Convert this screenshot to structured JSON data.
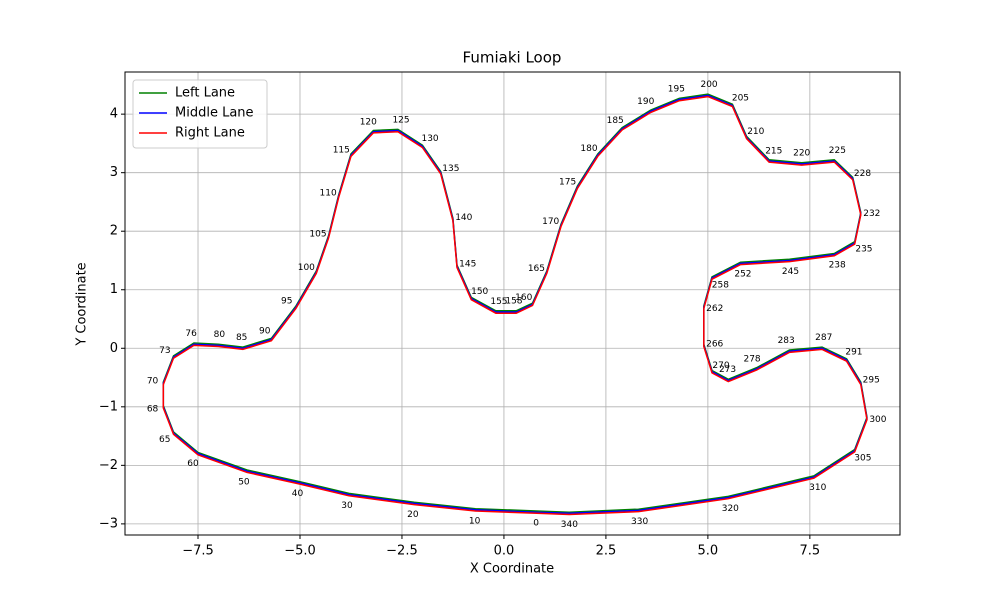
{
  "chart_data": {
    "type": "line",
    "title": "Fumiaki Loop",
    "x_label": "X Coordinate",
    "y_label": "Y Coordinate",
    "xlim": [
      -9.29,
      9.71
    ],
    "ylim": [
      -3.19,
      4.72
    ],
    "xticks": [
      {
        "value": -7.5,
        "label": "−7.5"
      },
      {
        "value": -5,
        "label": "−5.0"
      },
      {
        "value": -2.5,
        "label": "−2.5"
      },
      {
        "value": 0,
        "label": "0.0"
      },
      {
        "value": 2.5,
        "label": "2.5"
      },
      {
        "value": 5,
        "label": "5.0"
      },
      {
        "value": 7.5,
        "label": "7.5"
      }
    ],
    "yticks": [
      {
        "value": -3,
        "label": "−3"
      },
      {
        "value": -2,
        "label": "−2"
      },
      {
        "value": -1,
        "label": "−1"
      },
      0,
      1,
      2,
      3,
      4
    ],
    "grid": true,
    "legend": "upper left",
    "x": [
      0.8,
      -0.7,
      -2.2,
      -3.8,
      -5.0,
      -6.3,
      -7.5,
      -8.1,
      -8.35,
      -8.35,
      -8.1,
      -7.6,
      -7.0,
      -6.4,
      -5.7,
      -5.1,
      -4.6,
      -4.3,
      -4.05,
      -3.75,
      -3.2,
      -2.6,
      -2.0,
      -1.55,
      -1.25,
      -1.15,
      -0.8,
      -0.2,
      0.3,
      0.7,
      1.05,
      1.4,
      1.8,
      2.3,
      2.9,
      3.6,
      4.3,
      5.0,
      5.6,
      5.95,
      6.5,
      7.3,
      8.1,
      8.55,
      8.75,
      8.6,
      8.1,
      7.0,
      5.8,
      5.1,
      4.9,
      4.9,
      5.1,
      5.5,
      6.2,
      7.0,
      7.8,
      8.4,
      8.75,
      8.9,
      8.6,
      7.6,
      5.5,
      3.3,
      1.6
    ],
    "point_labels": [
      0,
      10,
      20,
      30,
      40,
      50,
      60,
      65,
      68,
      70,
      73,
      76,
      80,
      85,
      90,
      95,
      100,
      105,
      110,
      115,
      120,
      125,
      130,
      135,
      140,
      145,
      150,
      155,
      158,
      160,
      165,
      170,
      175,
      180,
      185,
      190,
      195,
      200,
      205,
      210,
      215,
      220,
      225,
      228,
      232,
      235,
      238,
      245,
      252,
      258,
      262,
      266,
      270,
      273,
      278,
      283,
      287,
      291,
      295,
      300,
      305,
      310,
      320,
      330,
      340
    ],
    "series": [
      {
        "name": "Left Lane",
        "color": "#008000",
        "values": [
          -2.78,
          -2.74,
          -2.63,
          -2.48,
          -2.28,
          -2.08,
          -1.78,
          -1.43,
          -0.98,
          -0.58,
          -0.13,
          0.09,
          0.07,
          0.02,
          0.17,
          0.72,
          1.32,
          1.92,
          2.62,
          3.32,
          3.72,
          3.74,
          3.47,
          3.02,
          2.22,
          1.42,
          0.87,
          0.64,
          0.64,
          0.77,
          1.32,
          2.12,
          2.77,
          3.32,
          3.77,
          4.07,
          4.27,
          4.34,
          4.17,
          3.62,
          3.22,
          3.17,
          3.22,
          2.92,
          2.32,
          1.82,
          1.62,
          1.52,
          1.47,
          1.22,
          0.72,
          0.07,
          -0.38,
          -0.53,
          -0.33,
          -0.03,
          0.02,
          -0.18,
          -0.58,
          -1.18,
          -1.73,
          -2.18,
          -2.53,
          -2.75,
          -2.8
        ]
      },
      {
        "name": "Middle Lane",
        "color": "#0000ff",
        "values": [
          -2.8,
          -2.76,
          -2.65,
          -2.5,
          -2.3,
          -2.1,
          -1.8,
          -1.45,
          -1.0,
          -0.6,
          -0.15,
          0.07,
          0.05,
          0.0,
          0.15,
          0.7,
          1.3,
          1.9,
          2.6,
          3.3,
          3.7,
          3.72,
          3.45,
          3.0,
          2.2,
          1.4,
          0.85,
          0.62,
          0.62,
          0.75,
          1.3,
          2.1,
          2.75,
          3.3,
          3.75,
          4.05,
          4.25,
          4.32,
          4.15,
          3.6,
          3.2,
          3.15,
          3.2,
          2.9,
          2.3,
          1.8,
          1.6,
          1.5,
          1.45,
          1.2,
          0.7,
          0.05,
          -0.4,
          -0.55,
          -0.35,
          -0.05,
          0.0,
          -0.2,
          -0.6,
          -1.2,
          -1.75,
          -2.2,
          -2.55,
          -2.77,
          -2.82
        ]
      },
      {
        "name": "Right Lane",
        "color": "#ff0000",
        "values": [
          -2.82,
          -2.78,
          -2.67,
          -2.52,
          -2.32,
          -2.12,
          -1.82,
          -1.47,
          -1.02,
          -0.62,
          -0.17,
          0.05,
          0.03,
          -0.02,
          0.13,
          0.68,
          1.28,
          1.88,
          2.58,
          3.28,
          3.68,
          3.7,
          3.43,
          2.98,
          2.18,
          1.38,
          0.83,
          0.6,
          0.6,
          0.73,
          1.28,
          2.08,
          2.73,
          3.28,
          3.73,
          4.03,
          4.23,
          4.3,
          4.13,
          3.58,
          3.18,
          3.13,
          3.18,
          2.88,
          2.28,
          1.78,
          1.58,
          1.48,
          1.43,
          1.18,
          0.68,
          0.03,
          -0.42,
          -0.57,
          -0.37,
          -0.07,
          -0.02,
          -0.22,
          -0.62,
          -1.22,
          -1.77,
          -2.22,
          -2.57,
          -2.79,
          -2.84
        ]
      }
    ]
  }
}
